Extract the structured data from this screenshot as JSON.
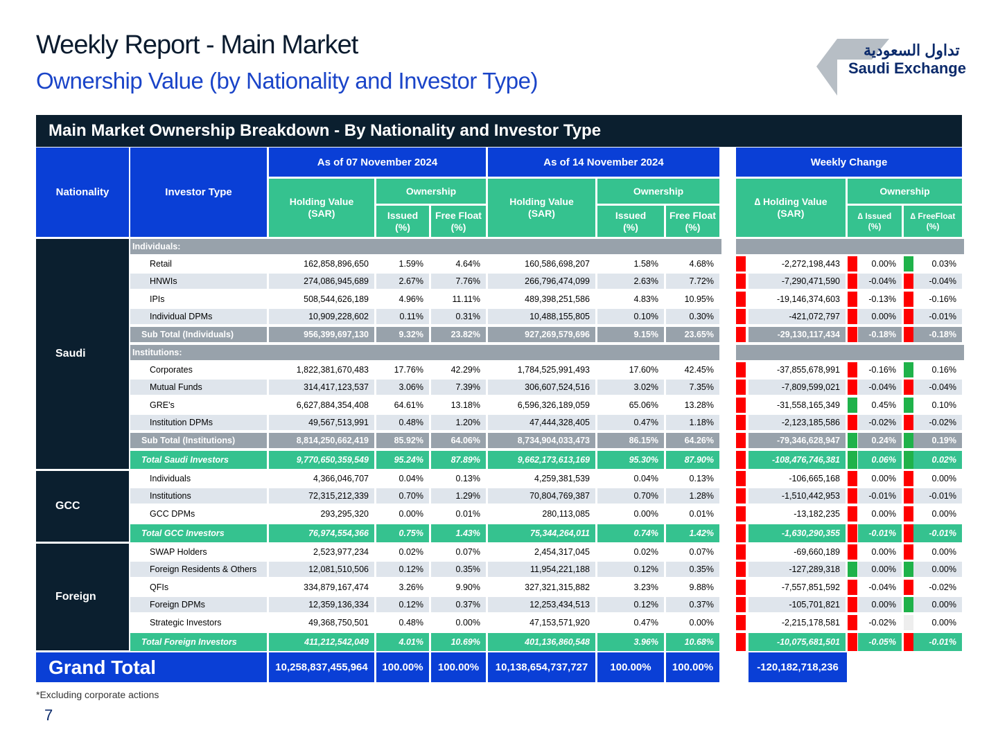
{
  "header": {
    "title": "Weekly Report - Main Market",
    "subtitle": "Ownership Value (by Nationality and Investor Type)",
    "logo_ar": "تداول السعودية",
    "logo_en": "Saudi Exchange"
  },
  "table": {
    "banner": "Main Market Ownership Breakdown - By Nationality and Investor Type",
    "col_nationality": "Nationality",
    "col_investor_type": "Investor Type",
    "period1": "As of 07 November 2024",
    "period2": "As of 14 November 2024",
    "period3": "Weekly Change",
    "holding_value": "Holding Value",
    "sar": "(SAR)",
    "delta_holding_value": "∆ Holding Value",
    "ownership": "Ownership",
    "issued": "Issued",
    "free_float": "Free Float",
    "pct": "(%)",
    "delta_issued": "∆ Issued",
    "delta_freefloat": "∆ FreeFloat",
    "nat_saudi": "Saudi",
    "nat_gcc": "GCC",
    "nat_foreign": "Foreign",
    "sec_individuals": "Individuals:",
    "sec_institutions": "Institutions:",
    "rows": [
      {
        "label": "Retail",
        "v1": "162,858,896,650",
        "i1": "1.59%",
        "f1": "4.64%",
        "v2": "160,586,698,207",
        "i2": "1.58%",
        "f2": "4.68%",
        "dv": "-2,272,198,443",
        "di": "0.00%",
        "df": "0.03%",
        "cv": "red",
        "ci": "red",
        "cf": "green",
        "kind": "n"
      },
      {
        "label": "HNWIs",
        "v1": "274,086,945,689",
        "i1": "2.67%",
        "f1": "7.76%",
        "v2": "266,796,474,099",
        "i2": "2.63%",
        "f2": "7.72%",
        "dv": "-7,290,471,590",
        "di": "-0.04%",
        "df": "-0.04%",
        "cv": "red",
        "ci": "red",
        "cf": "red",
        "kind": "a"
      },
      {
        "label": "IPIs",
        "v1": "508,544,626,189",
        "i1": "4.96%",
        "f1": "11.11%",
        "v2": "489,398,251,586",
        "i2": "4.83%",
        "f2": "10.95%",
        "dv": "-19,146,374,603",
        "di": "-0.13%",
        "df": "-0.16%",
        "cv": "red",
        "ci": "red",
        "cf": "red",
        "kind": "n"
      },
      {
        "label": "Individual DPMs",
        "v1": "10,909,228,602",
        "i1": "0.11%",
        "f1": "0.31%",
        "v2": "10,488,155,805",
        "i2": "0.10%",
        "f2": "0.30%",
        "dv": "-421,072,797",
        "di": "0.00%",
        "df": "-0.01%",
        "cv": "red",
        "ci": "red",
        "cf": "red",
        "kind": "a"
      },
      {
        "label": "Sub Total (Individuals)",
        "v1": "956,399,697,130",
        "i1": "9.32%",
        "f1": "23.82%",
        "v2": "927,269,579,696",
        "i2": "9.15%",
        "f2": "23.65%",
        "dv": "-29,130,117,434",
        "di": "-0.18%",
        "df": "-0.18%",
        "cv": "red",
        "ci": "red",
        "cf": "red",
        "kind": "s"
      },
      {
        "label": "Corporates",
        "v1": "1,822,381,670,483",
        "i1": "17.76%",
        "f1": "42.29%",
        "v2": "1,784,525,991,493",
        "i2": "17.60%",
        "f2": "42.45%",
        "dv": "-37,855,678,991",
        "di": "-0.16%",
        "df": "0.16%",
        "cv": "red",
        "ci": "red",
        "cf": "green",
        "kind": "n"
      },
      {
        "label": "Mutual Funds",
        "v1": "314,417,123,537",
        "i1": "3.06%",
        "f1": "7.39%",
        "v2": "306,607,524,516",
        "i2": "3.02%",
        "f2": "7.35%",
        "dv": "-7,809,599,021",
        "di": "-0.04%",
        "df": "-0.04%",
        "cv": "red",
        "ci": "red",
        "cf": "red",
        "kind": "a"
      },
      {
        "label": "GRE's",
        "v1": "6,627,884,354,408",
        "i1": "64.61%",
        "f1": "13.18%",
        "v2": "6,596,326,189,059",
        "i2": "65.06%",
        "f2": "13.28%",
        "dv": "-31,558,165,349",
        "di": "0.45%",
        "df": "0.10%",
        "cv": "red",
        "ci": "green",
        "cf": "green",
        "kind": "n"
      },
      {
        "label": "Institution DPMs",
        "v1": "49,567,513,991",
        "i1": "0.48%",
        "f1": "1.20%",
        "v2": "47,444,328,405",
        "i2": "0.47%",
        "f2": "1.18%",
        "dv": "-2,123,185,586",
        "di": "-0.02%",
        "df": "-0.02%",
        "cv": "red",
        "ci": "red",
        "cf": "red",
        "kind": "a"
      },
      {
        "label": "Sub Total (Institutions)",
        "v1": "8,814,250,662,419",
        "i1": "85.92%",
        "f1": "64.06%",
        "v2": "8,734,904,033,473",
        "i2": "86.15%",
        "f2": "64.26%",
        "dv": "-79,346,628,947",
        "di": "0.24%",
        "df": "0.19%",
        "cv": "red",
        "ci": "green",
        "cf": "green",
        "kind": "s"
      },
      {
        "label": "Total Saudi Investors",
        "v1": "9,770,650,359,549",
        "i1": "95.24%",
        "f1": "87.89%",
        "v2": "9,662,173,613,169",
        "i2": "95.30%",
        "f2": "87.90%",
        "dv": "-108,476,746,381",
        "di": "0.06%",
        "df": "0.02%",
        "cv": "red",
        "ci": "green",
        "cf": "green",
        "kind": "t"
      },
      {
        "label": "Individuals",
        "v1": "4,366,046,707",
        "i1": "0.04%",
        "f1": "0.13%",
        "v2": "4,259,381,539",
        "i2": "0.04%",
        "f2": "0.13%",
        "dv": "-106,665,168",
        "di": "0.00%",
        "df": "0.00%",
        "cv": "red",
        "ci": "red",
        "cf": "red",
        "kind": "n"
      },
      {
        "label": "Institutions",
        "v1": "72,315,212,339",
        "i1": "0.70%",
        "f1": "1.29%",
        "v2": "70,804,769,387",
        "i2": "0.70%",
        "f2": "1.28%",
        "dv": "-1,510,442,953",
        "di": "-0.01%",
        "df": "-0.01%",
        "cv": "red",
        "ci": "red",
        "cf": "red",
        "kind": "a"
      },
      {
        "label": "GCC DPMs",
        "v1": "293,295,320",
        "i1": "0.00%",
        "f1": "0.01%",
        "v2": "280,113,085",
        "i2": "0.00%",
        "f2": "0.01%",
        "dv": "-13,182,235",
        "di": "0.00%",
        "df": "0.00%",
        "cv": "red",
        "ci": "red",
        "cf": "red",
        "kind": "n"
      },
      {
        "label": "Total GCC Investors",
        "v1": "76,974,554,366",
        "i1": "0.75%",
        "f1": "1.43%",
        "v2": "75,344,264,011",
        "i2": "0.74%",
        "f2": "1.42%",
        "dv": "-1,630,290,355",
        "di": "-0.01%",
        "df": "-0.01%",
        "cv": "red",
        "ci": "red",
        "cf": "red",
        "kind": "t"
      },
      {
        "label": "SWAP Holders",
        "v1": "2,523,977,234",
        "i1": "0.02%",
        "f1": "0.07%",
        "v2": "2,454,317,045",
        "i2": "0.02%",
        "f2": "0.07%",
        "dv": "-69,660,189",
        "di": "0.00%",
        "df": "0.00%",
        "cv": "red",
        "ci": "red",
        "cf": "red",
        "kind": "n"
      },
      {
        "label": "Foreign Residents & Others",
        "v1": "12,081,510,506",
        "i1": "0.12%",
        "f1": "0.35%",
        "v2": "11,954,221,188",
        "i2": "0.12%",
        "f2": "0.35%",
        "dv": "-127,289,318",
        "di": "0.00%",
        "df": "0.00%",
        "cv": "red",
        "ci": "green",
        "cf": "green",
        "kind": "a"
      },
      {
        "label": "QFIs",
        "v1": "334,879,167,474",
        "i1": "3.26%",
        "f1": "9.90%",
        "v2": "327,321,315,882",
        "i2": "3.23%",
        "f2": "9.88%",
        "dv": "-7,557,851,592",
        "di": "-0.04%",
        "df": "-0.02%",
        "cv": "red",
        "ci": "red",
        "cf": "red",
        "kind": "n"
      },
      {
        "label": "Foreign DPMs",
        "v1": "12,359,136,334",
        "i1": "0.12%",
        "f1": "0.37%",
        "v2": "12,253,434,513",
        "i2": "0.12%",
        "f2": "0.37%",
        "dv": "-105,701,821",
        "di": "0.00%",
        "df": "0.00%",
        "cv": "red",
        "ci": "red",
        "cf": "green",
        "kind": "a"
      },
      {
        "label": "Strategic Investors",
        "v1": "49,368,750,501",
        "i1": "0.48%",
        "f1": "0.00%",
        "v2": "47,153,571,920",
        "i2": "0.47%",
        "f2": "0.00%",
        "dv": "-2,215,178,581",
        "di": "-0.02%",
        "df": "0.00%",
        "cv": "red",
        "ci": "red",
        "cf": "gray",
        "kind": "n"
      },
      {
        "label": "Total Foreign Investors",
        "v1": "411,212,542,049",
        "i1": "4.01%",
        "f1": "10.69%",
        "v2": "401,136,860,548",
        "i2": "3.96%",
        "f2": "10.68%",
        "dv": "-10,075,681,501",
        "di": "-0.05%",
        "df": "-0.01%",
        "cv": "red",
        "ci": "red",
        "cf": "red",
        "kind": "t"
      }
    ],
    "grand": {
      "label": "Grand Total",
      "v1": "10,258,837,455,964",
      "i1": "100.00%",
      "f1": "100.00%",
      "v2": "10,138,654,737,727",
      "i2": "100.00%",
      "f2": "100.00%",
      "dv": "-120,182,718,236"
    }
  },
  "footer": {
    "note": "*Excluding corporate actions",
    "page_number": "7"
  },
  "colors": {
    "navy": "#0b1f2f",
    "blue": "#0a3fd6",
    "green_header": "#35c28f",
    "subtotal_gray": "#98a2ab",
    "indicator_red": "#ff0000",
    "indicator_green": "#1fb24a"
  }
}
